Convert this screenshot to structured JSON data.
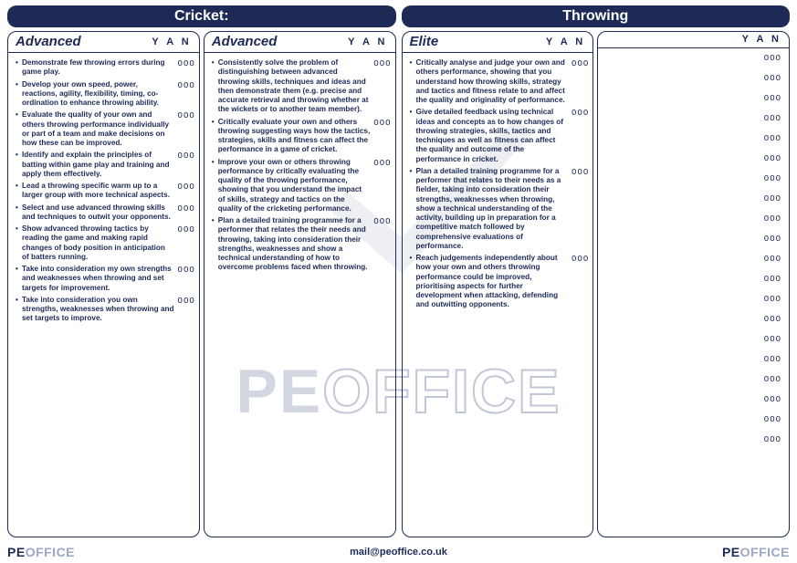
{
  "colors": {
    "primary": "#1d2a56",
    "watermark": "rgba(75,95,140,0.3)",
    "background": "#ffffff"
  },
  "watermark": {
    "text_left": "PE",
    "text_right": "OFFICE"
  },
  "footer": {
    "logo_pe": "PE",
    "logo_office": "OFFICE",
    "email": "mail@peoffice.co.uk"
  },
  "yan_label": "Y A N",
  "checkbox_glyph": "OOO",
  "left": {
    "title": "Cricket:",
    "columns": [
      {
        "level": "Advanced",
        "items": [
          "Demonstrate few throwing errors during game play.",
          "Develop your own speed, power, reactions, agility, flexibility, timing, co-ordination to enhance throwing ability.",
          "Evaluate the quality of your own and others throwing performance individually or part of a team and make decisions on how these can be improved.",
          "Identify and explain the principles of batting within game play and training and apply them effectively.",
          "Lead a throwing specific warm up to a larger group with more technical aspects.",
          "Select and use advanced throwing skills and techniques to outwit your opponents.",
          "Show advanced throwing tactics by reading the game and making rapid changes of body position in anticipation of batters running.",
          "Take into consideration my own strengths and weaknesses when throwing and set targets for improvement.",
          "Take into consideration you own strengths, weaknesses when throwing and set targets to improve."
        ]
      },
      {
        "level": "Advanced",
        "items": [
          "Consistently solve the problem of distinguishing between advanced throwing skills, techniques and ideas and then demonstrate them (e.g. precise and accurate retrieval and throwing whether at the wickets or to another team member).",
          "Critically evaluate your own and others throwing suggesting ways how the tactics, strategies, skills and fitness can affect the performance in a game of cricket.",
          "Improve your own or others throwing performance by critically evaluating the quality of the throwing performance, showing that you understand the impact of skills, strategy and tactics on the quality of the cricketing performance.",
          "Plan a detailed training programme for a performer that relates the their needs and throwing, taking into consideration their strengths, weaknesses and show a technical understanding of how to overcome problems faced when throwing."
        ]
      }
    ]
  },
  "right": {
    "title": "Throwing",
    "columns": [
      {
        "level": "Elite",
        "items": [
          "Critically analyse and judge your own and others performance, showing that you understand how throwing skills, strategy and tactics and fitness relate to and affect the quality and originality of performance.",
          "Give detailed feedback using technical ideas and concepts as to how changes of throwing strategies, skills, tactics and techniques as well as fitness can affect the quality and outcome of the performance in cricket.",
          "Plan a detailed training programme for a performer that relates to their needs as a fielder, taking into consideration their strengths, weaknesses when throwing, show a technical understanding of the activity, building up in preparation for a competitive match followed by comprehensive evaluations of performance.",
          "Reach judgements independently about how your own and others throwing performance could be improved, prioritising aspects for further development when attacking, defending and outwitting opponents."
        ]
      },
      {
        "level": "",
        "empty_rows": 20
      }
    ]
  }
}
